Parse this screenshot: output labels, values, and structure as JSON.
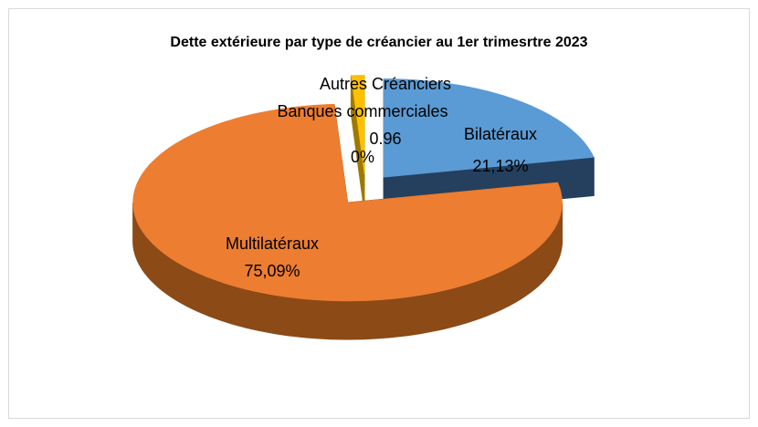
{
  "chart_data": {
    "type": "pie3d",
    "title": "Dette extérieure  par type de créancier au 1er trimesrtre 2023",
    "categories": [
      "Bilatéraux",
      "Multilatéraux",
      "Banques commerciales",
      "Autres Créanciers"
    ],
    "values": [
      21.13,
      75.09,
      0,
      0.96
    ],
    "value_labels": [
      "21,13%",
      "75,09%",
      "0%",
      "0.96"
    ],
    "colors": [
      "#5b9bd5",
      "#ed7d31",
      "#7f7f7f",
      "#ffc000"
    ],
    "side_colors": [
      "#24405e",
      "#8c4a17",
      "#3f3f3f",
      "#a07800"
    ]
  }
}
